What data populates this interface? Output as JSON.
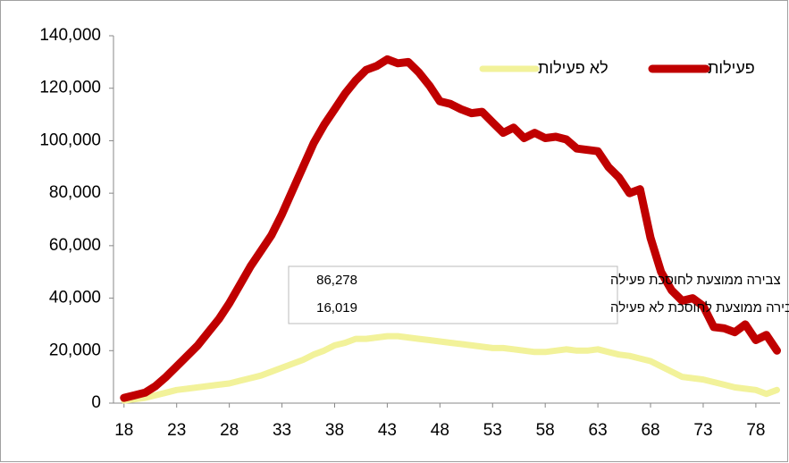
{
  "chart_data": {
    "type": "line",
    "x": [
      18,
      19,
      20,
      21,
      22,
      23,
      24,
      25,
      26,
      27,
      28,
      29,
      30,
      31,
      32,
      33,
      34,
      35,
      36,
      37,
      38,
      39,
      40,
      41,
      42,
      43,
      44,
      45,
      46,
      47,
      48,
      49,
      50,
      51,
      52,
      53,
      54,
      55,
      56,
      57,
      58,
      59,
      60,
      61,
      62,
      63,
      64,
      65,
      66,
      67,
      68,
      69,
      70,
      71,
      72,
      73,
      74,
      75,
      76,
      77,
      78,
      79,
      80
    ],
    "series": [
      {
        "name": "פעילות",
        "color": "#c00000",
        "values": [
          2000,
          3000,
          4000,
          6500,
          10000,
          14000,
          18000,
          22000,
          27000,
          32000,
          38000,
          45000,
          52000,
          58000,
          64000,
          72000,
          81000,
          90000,
          99000,
          106000,
          112000,
          118000,
          123000,
          127000,
          128500,
          131000,
          129500,
          130000,
          126000,
          121000,
          115000,
          114000,
          112000,
          110500,
          111000,
          107000,
          103000,
          105000,
          101000,
          103000,
          101000,
          101500,
          100500,
          97000,
          96500,
          96000,
          90000,
          86000,
          80000,
          81500,
          63000,
          50000,
          43000,
          39000,
          40000,
          37000,
          29000,
          28500,
          27000,
          30000,
          24000,
          26000,
          20000
        ]
      },
      {
        "name": "לא פעילות",
        "color": "#f2f29a",
        "values": [
          1000,
          1500,
          2000,
          3000,
          4000,
          5000,
          5500,
          6000,
          6500,
          7000,
          7500,
          8500,
          9500,
          10500,
          12000,
          13500,
          15000,
          16500,
          18500,
          20000,
          22000,
          23000,
          24500,
          24500,
          25000,
          25500,
          25500,
          25000,
          24500,
          24000,
          23500,
          23000,
          22500,
          22000,
          21500,
          21000,
          21000,
          20500,
          20000,
          19500,
          19500,
          20000,
          20500,
          20000,
          20000,
          20500,
          19500,
          18500,
          18000,
          17000,
          16000,
          14000,
          12000,
          10000,
          9500,
          9000,
          8000,
          7000,
          6000,
          5500,
          5000,
          3500,
          5000
        ]
      }
    ],
    "xlim": [
      17,
      80.3
    ],
    "xticks": [
      18,
      23,
      28,
      33,
      38,
      43,
      48,
      53,
      58,
      63,
      68,
      73,
      78
    ],
    "ylim": [
      0,
      140000
    ],
    "yticks": [
      0,
      {
        "value": 20000,
        "label": "20,000"
      },
      {
        "value": 40000,
        "label": "40,000"
      },
      {
        "value": 60000,
        "label": "60,000"
      },
      {
        "value": 80000,
        "label": "80,000"
      },
      {
        "value": 100000,
        "label": "100,000"
      },
      {
        "value": 120000,
        "label": "120,000"
      },
      {
        "value": 140000,
        "label": "140,000"
      }
    ],
    "grid": false,
    "annotations": [
      {
        "text": "צבירה ממוצעת לחוסכת פעילה",
        "value": "86,278"
      },
      {
        "text": "צבירה ממוצעת לחוסכת לא פעילה",
        "value": "16,019"
      }
    ]
  }
}
